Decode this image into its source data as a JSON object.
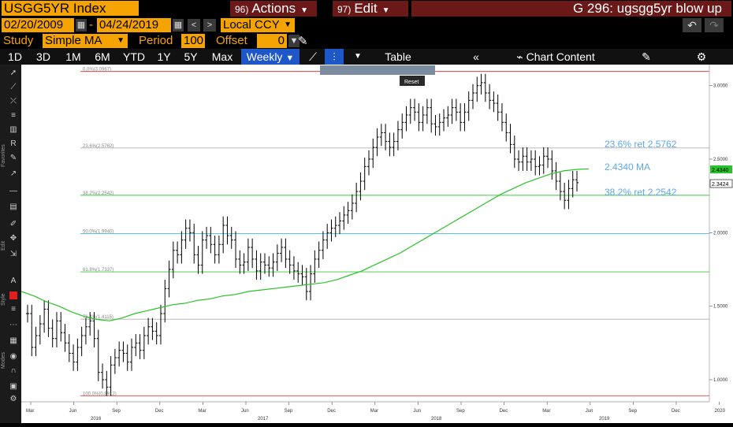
{
  "header": {
    "ticker": "USGG5YR Index",
    "actions_num": "96)",
    "actions_label": "Actions",
    "edit_num": "97)",
    "edit_label": "Edit",
    "chart_title": "G 296: ugsgg5yr blow up"
  },
  "dates": {
    "start": "02/20/2009",
    "separator": "-",
    "end": "04/24/2019",
    "currency": "Local CCY"
  },
  "study": {
    "label": "Study",
    "value": "Simple MA",
    "period_label": "Period",
    "period_value": "100",
    "offset_label": "Offset",
    "offset_value": "0"
  },
  "toolbar": {
    "ranges": [
      "1D",
      "3D",
      "1M",
      "6M",
      "YTD",
      "1Y",
      "5Y",
      "Max"
    ],
    "frequency": "Weekly",
    "table_label": "Table",
    "chart_content_label": "Chart Content"
  },
  "sidebar": {
    "favorites_label": "Favorites",
    "edit_label": "Edit",
    "style_label": "Style",
    "modes_label": "Modes"
  },
  "overlay": {
    "reset_label": "Reset"
  },
  "colors": {
    "amber": "#f4a300",
    "maroon": "#6b1818",
    "selected": "#1e57c8",
    "ma_line": "#29c229",
    "fib_grey": "#b0b0b0",
    "fib_red": "#e04040",
    "fib_green": "#3ec93e",
    "fib_blue": "#38c0e6",
    "annotation_blue": "#5ca8e8",
    "price": "#000000"
  },
  "chart_data": {
    "type": "bar",
    "frequency": "weekly",
    "ylim": [
      0.85,
      3.1
    ],
    "y_ticks": [
      "3.0000",
      "2.5000",
      "2.0000",
      "1.5000",
      "1.0000"
    ],
    "x_ticks": [
      "Mar",
      "Jun",
      "Sep",
      "Dec",
      "Mar",
      "Jun",
      "Sep",
      "Dec",
      "Mar",
      "Jun",
      "Sep",
      "Dec",
      "Mar",
      "Jun",
      "Sep",
      "Dec",
      "2020"
    ],
    "year_labels": [
      "2016",
      "2017",
      "2018",
      "2019"
    ],
    "price_series": [
      1.45,
      1.22,
      1.3,
      1.38,
      1.48,
      1.35,
      1.28,
      1.4,
      1.32,
      1.25,
      1.18,
      1.12,
      1.22,
      1.3,
      1.36,
      1.4,
      1.28,
      1.05,
      1.0,
      0.95,
      1.1,
      1.15,
      1.2,
      1.18,
      1.12,
      1.22,
      1.25,
      1.2,
      1.3,
      1.36,
      1.33,
      1.3,
      1.45,
      1.62,
      1.75,
      1.88,
      1.85,
      1.95,
      2.03,
      2.0,
      1.85,
      1.78,
      1.95,
      1.98,
      1.92,
      1.85,
      1.92,
      2.05,
      1.98,
      1.95,
      1.82,
      1.78,
      1.8,
      1.9,
      1.82,
      1.74,
      1.8,
      1.78,
      1.76,
      1.8,
      1.86,
      1.9,
      1.82,
      1.78,
      1.74,
      1.72,
      1.7,
      1.6,
      1.72,
      1.82,
      1.88,
      1.95,
      2.0,
      2.03,
      2.05,
      2.08,
      2.12,
      2.15,
      2.2,
      2.28,
      2.35,
      2.45,
      2.5,
      2.58,
      2.65,
      2.68,
      2.62,
      2.58,
      2.62,
      2.7,
      2.75,
      2.8,
      2.85,
      2.82,
      2.75,
      2.8,
      2.85,
      2.74,
      2.72,
      2.75,
      2.78,
      2.8,
      2.85,
      2.82,
      2.75,
      2.82,
      2.9,
      2.95,
      3.0,
      3.02,
      2.95,
      2.9,
      2.88,
      2.82,
      2.75,
      2.68,
      2.6,
      2.5,
      2.48,
      2.52,
      2.48,
      2.5,
      2.45,
      2.46,
      2.52,
      2.5,
      2.42,
      2.35,
      2.28,
      2.22,
      2.3,
      2.36,
      2.34
    ],
    "ma_series": [
      1.6,
      1.57,
      1.53,
      1.5,
      1.46,
      1.43,
      1.41,
      1.4,
      1.42,
      1.45,
      1.47,
      1.49,
      1.51,
      1.52,
      1.54,
      1.55,
      1.57,
      1.58,
      1.6,
      1.61,
      1.62,
      1.63,
      1.64,
      1.65,
      1.66,
      1.68,
      1.71,
      1.74,
      1.78,
      1.82,
      1.86,
      1.91,
      1.96,
      2.01,
      2.06,
      2.11,
      2.16,
      2.21,
      2.26,
      2.3,
      2.34,
      2.37,
      2.4,
      2.42,
      2.43,
      2.434
    ],
    "fib_levels": [
      {
        "label": "0.0%(3.0967)",
        "value": 3.0967
      },
      {
        "label": "23.6%(2.5762)",
        "value": 2.5762
      },
      {
        "label": "38.2%(2.2542)",
        "value": 2.2542
      },
      {
        "label": "50.0%(1.9940)",
        "value": 1.994
      },
      {
        "label": "61.8%(1.7337)",
        "value": 1.7337
      },
      {
        "label": "76.4%(1.4115)",
        "value": 1.4115
      },
      {
        "label": "100.0%(0.8912)",
        "value": 0.8912
      }
    ],
    "annotations": {
      "ret236": "23.6% ret 2.5762",
      "ma": "2.4340 MA",
      "ret382": "38.2% ret 2.2542"
    },
    "last_values": {
      "ma": "2.4340",
      "price": "2.3424"
    }
  }
}
